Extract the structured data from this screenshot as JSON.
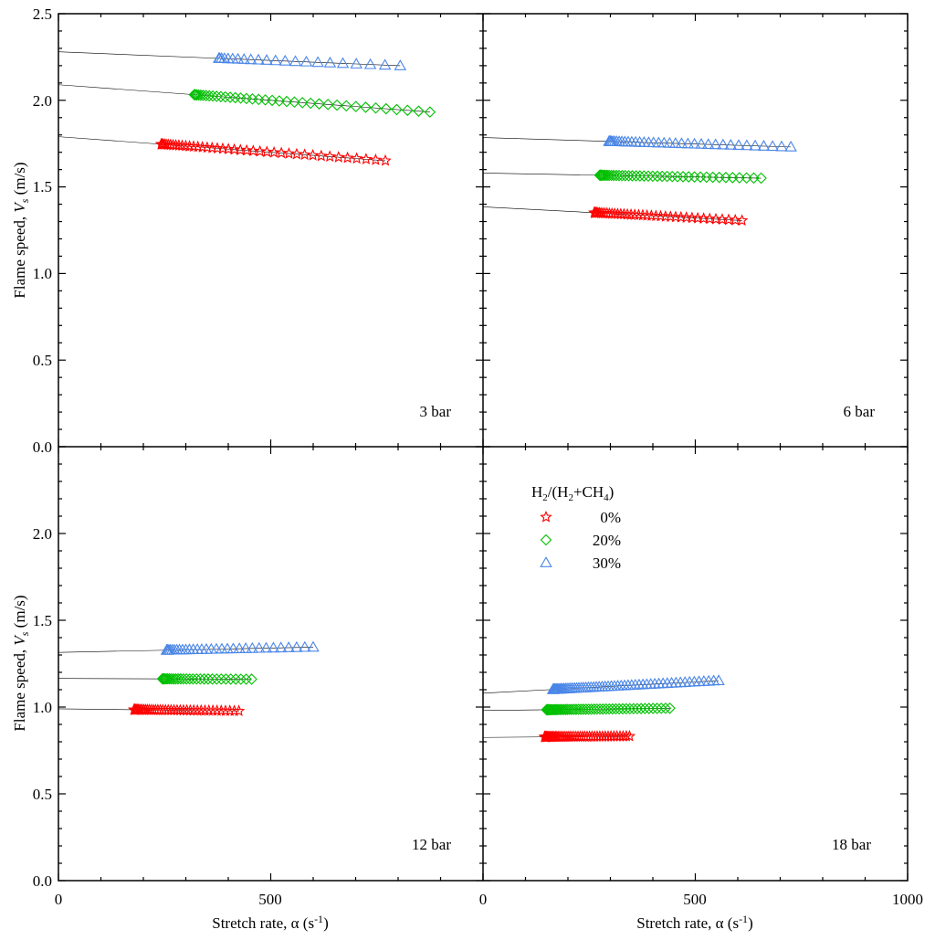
{
  "chart_data": {
    "type": "scatter",
    "x_label_main": "Stretch rate, α (s",
    "x_label_sup": "-1",
    "x_label_end": ")",
    "y_label_main": "Flame speed, ",
    "y_label_var": "V",
    "y_label_sub": "s",
    "y_label_end": " (m/s)",
    "legend_title_parts": [
      "H",
      "2",
      "/(H",
      "2",
      "+CH",
      "4",
      ")"
    ],
    "legend_position": "top-left of lower-right panel",
    "x_tick_labels_left": [
      "0",
      "500"
    ],
    "x_tick_labels_right": [
      "0",
      "500",
      "1000"
    ],
    "y_tick_labels_top": [
      "0.0",
      "0.5",
      "1.0",
      "1.5",
      "2.0",
      "2.5"
    ],
    "y_tick_labels_bottom": [
      "0.0",
      "0.5",
      "1.0",
      "1.5",
      "2.0"
    ],
    "xlim": [
      0,
      1000
    ],
    "ylim": [
      0,
      2.5
    ],
    "series": [
      {
        "key": "h0",
        "name": "0%",
        "marker": "star",
        "color": "#ff0000"
      },
      {
        "key": "h20",
        "name": "20%",
        "marker": "diamond",
        "color": "#00c000"
      },
      {
        "key": "h30",
        "name": "30%",
        "marker": "triangle",
        "color": "#4a86e8"
      }
    ],
    "panels": [
      {
        "label": "3 bar",
        "position": "top-left",
        "data": {
          "h0": {
            "intercept": 1.79,
            "slope": -0.00018,
            "x_range": [
              242,
              770
            ],
            "n": 42
          },
          "h20": {
            "intercept": 2.09,
            "slope": -0.00018,
            "x_range": [
              320,
              875
            ],
            "n": 38
          },
          "h30": {
            "intercept": 2.28,
            "slope": -0.0001,
            "x_range": [
              378,
              805
            ],
            "n": 22
          }
        }
      },
      {
        "label": "6 bar",
        "position": "top-right",
        "data": {
          "h0": {
            "intercept": 1.385,
            "slope": -0.00013,
            "x_range": [
              262,
              610
            ],
            "n": 40
          },
          "h20": {
            "intercept": 1.58,
            "slope": -4.5e-05,
            "x_range": [
              275,
              655
            ],
            "n": 40
          },
          "h30": {
            "intercept": 1.785,
            "slope": -7.5e-05,
            "x_range": [
              297,
              725
            ],
            "n": 36
          }
        }
      },
      {
        "label": "12 bar",
        "position": "bottom-left",
        "data": {
          "h0": {
            "intercept": 0.99,
            "slope": -3e-05,
            "x_range": [
              178,
              425
            ],
            "n": 42
          },
          "h20": {
            "intercept": 1.165,
            "slope": -1e-05,
            "x_range": [
              245,
              455
            ],
            "n": 30
          },
          "h30": {
            "intercept": 1.315,
            "slope": 5e-05,
            "x_range": [
              255,
              600
            ],
            "n": 32
          }
        }
      },
      {
        "label": "18 bar",
        "position": "bottom-right",
        "data": {
          "h0": {
            "intercept": 0.825,
            "slope": 2e-05,
            "x_range": [
              145,
              345
            ],
            "n": 48
          },
          "h20": {
            "intercept": 0.98,
            "slope": 3e-05,
            "x_range": [
              150,
              440
            ],
            "n": 52
          },
          "h30": {
            "intercept": 1.08,
            "slope": 0.00013,
            "x_range": [
              165,
              555
            ],
            "n": 60
          }
        }
      }
    ]
  }
}
